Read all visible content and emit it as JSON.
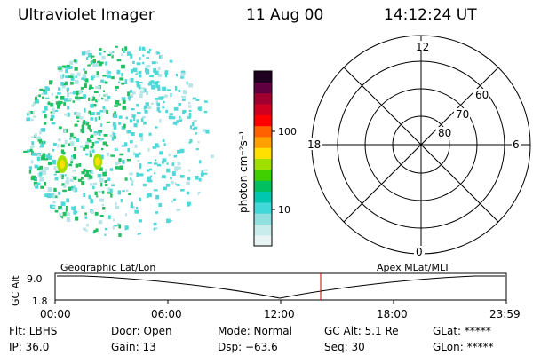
{
  "header": {
    "title": "Ultraviolet Imager",
    "date": "11 Aug 00",
    "time": "14:12:24 UT"
  },
  "colorbar": {
    "label": "photon cm⁻²s⁻¹",
    "ticks": [
      "100",
      "10"
    ],
    "colors": [
      "#e8f4f4",
      "#c8ecec",
      "#90e0e0",
      "#40d8d8",
      "#00c8b0",
      "#00c060",
      "#40d000",
      "#a0e000",
      "#ffe000",
      "#ffa000",
      "#ff6000",
      "#ff0000",
      "#d00020",
      "#a00030",
      "#600040",
      "#200020"
    ]
  },
  "polar": {
    "mlt_labels": {
      "top": "12",
      "bottom": "0",
      "left": "18",
      "right": "6"
    },
    "lat_labels": [
      "60",
      "70",
      "80"
    ]
  },
  "altplot": {
    "left_label": "Geographic Lat/Lon",
    "right_label": "Apex MLat/MLT",
    "y_title": "GC Alt",
    "y_ticks": [
      "9.0",
      "1.8"
    ],
    "x_ticks": [
      "00:00",
      "06:00",
      "12:00",
      "18:00",
      "23:59"
    ],
    "current_time_marker": "14:12"
  },
  "info": {
    "flt": "Flt: LBHS",
    "ip": "IP: 36.0",
    "door": "Door: Open",
    "gain": "Gain: 13",
    "mode": "Mode: Normal",
    "dsp": "Dsp:   −63.6",
    "gcalt": "GC Alt: 5.1 Re",
    "seq": "Seq: 30",
    "glat": "GLat: *****",
    "glon": "GLon: *****"
  }
}
